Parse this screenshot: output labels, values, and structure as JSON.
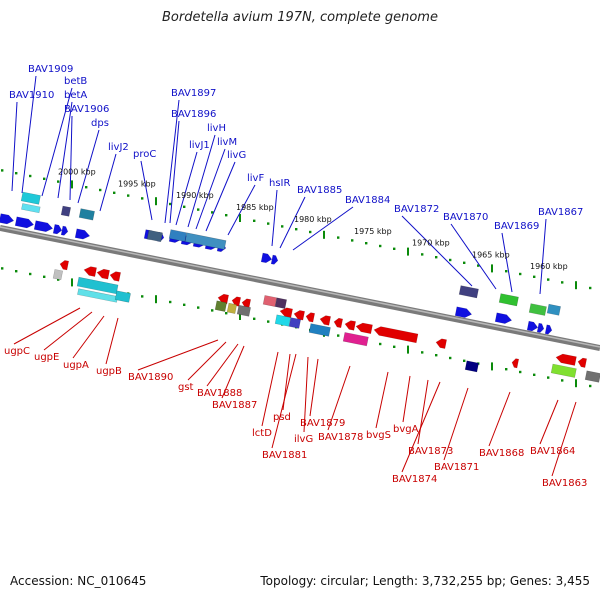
{
  "header": {
    "title": "Bordetella avium 197N, complete genome"
  },
  "footer": {
    "accession": "Accession: NC_010645",
    "summary": "Topology: circular; Length: 3,732,255 bp; Genes: 3,455"
  },
  "colors": {
    "forward_strand": "#1010e0",
    "reverse_strand": "#e00000",
    "forward_label": "#1010c8",
    "reverse_label": "#c80000",
    "backbone": "#888888",
    "tick_green": "#0a8a0a"
  },
  "scale_labels": [
    "2000 kbp",
    "1995 kbp",
    "1990 kbp",
    "1985 kbp",
    "1980 kbp",
    "1975 kbp",
    "1970 kbp",
    "1965 kbp",
    "1960 kbp"
  ],
  "forward_genes": [
    "BAV1909",
    "BAV1910",
    "betB",
    "betA",
    "BAV1906",
    "dps",
    "livJ2",
    "proC",
    "BAV1897",
    "BAV1896",
    "livJ1",
    "livH",
    "livM",
    "livG",
    "livF",
    "hsIR",
    "BAV1885",
    "BAV1884",
    "BAV1872",
    "BAV1870",
    "BAV1869",
    "BAV1867"
  ],
  "reverse_genes": [
    "ugpC",
    "ugpE",
    "ugpA",
    "ugpB",
    "BAV1890",
    "gst",
    "BAV1888",
    "BAV1887",
    "lctD",
    "psd",
    "BAV1881",
    "ilvG",
    "BAV1879",
    "BAV1878",
    "bvgS",
    "bvgA",
    "BAV1873",
    "BAV1874",
    "BAV1871",
    "BAV1868",
    "BAV1864",
    "BAV1863"
  ]
}
